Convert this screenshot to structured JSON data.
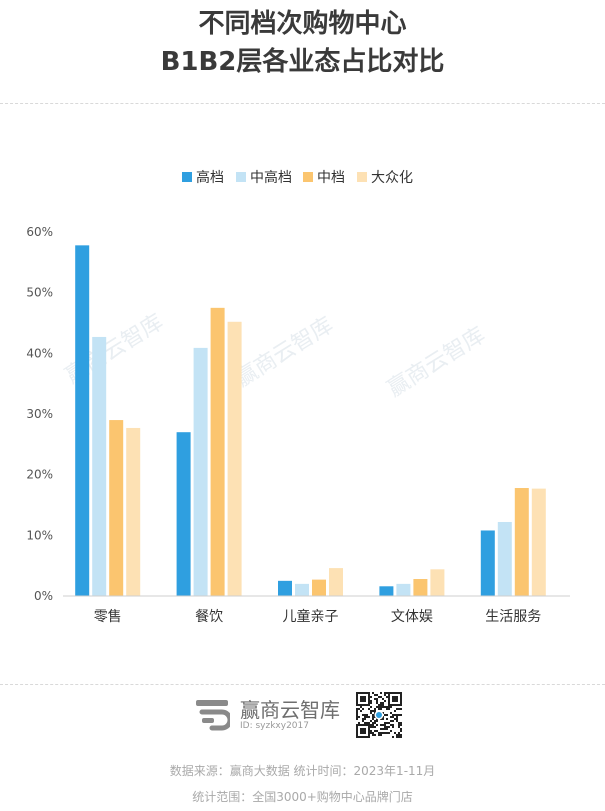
{
  "title_line1": "不同档次购物中心",
  "title_line2": "B1B2层各业态占比对比",
  "brand": {
    "name": "赢商云智库",
    "id": "ID: syzkxy2017"
  },
  "footer": {
    "source": "数据来源：赢商大数据   统计时间：2023年1-11月",
    "scope": "统计范围：全国3000+购物中心品牌门店"
  },
  "watermark": "赢商云智库",
  "chart_data": {
    "type": "bar",
    "title": "",
    "xlabel": "",
    "ylabel": "",
    "ylim": [
      0,
      60
    ],
    "yticks": [
      "0%",
      "10%",
      "20%",
      "30%",
      "40%",
      "50%",
      "60%"
    ],
    "grid": false,
    "legend_position": "top-center",
    "categories": [
      "零售",
      "餐饮",
      "儿童亲子",
      "文体娱",
      "生活服务"
    ],
    "series": [
      {
        "name": "高档",
        "color": "#2f9fe0",
        "values": [
          57.8,
          27.0,
          2.5,
          1.6,
          10.8
        ]
      },
      {
        "name": "中高档",
        "color": "#c3e3f5",
        "values": [
          42.7,
          40.9,
          2.0,
          2.0,
          12.2
        ]
      },
      {
        "name": "中档",
        "color": "#fbc56f",
        "values": [
          29.0,
          47.5,
          2.7,
          2.8,
          17.8
        ]
      },
      {
        "name": "大众化",
        "color": "#fde1b4",
        "values": [
          27.7,
          45.2,
          4.6,
          4.4,
          17.7
        ]
      }
    ]
  }
}
